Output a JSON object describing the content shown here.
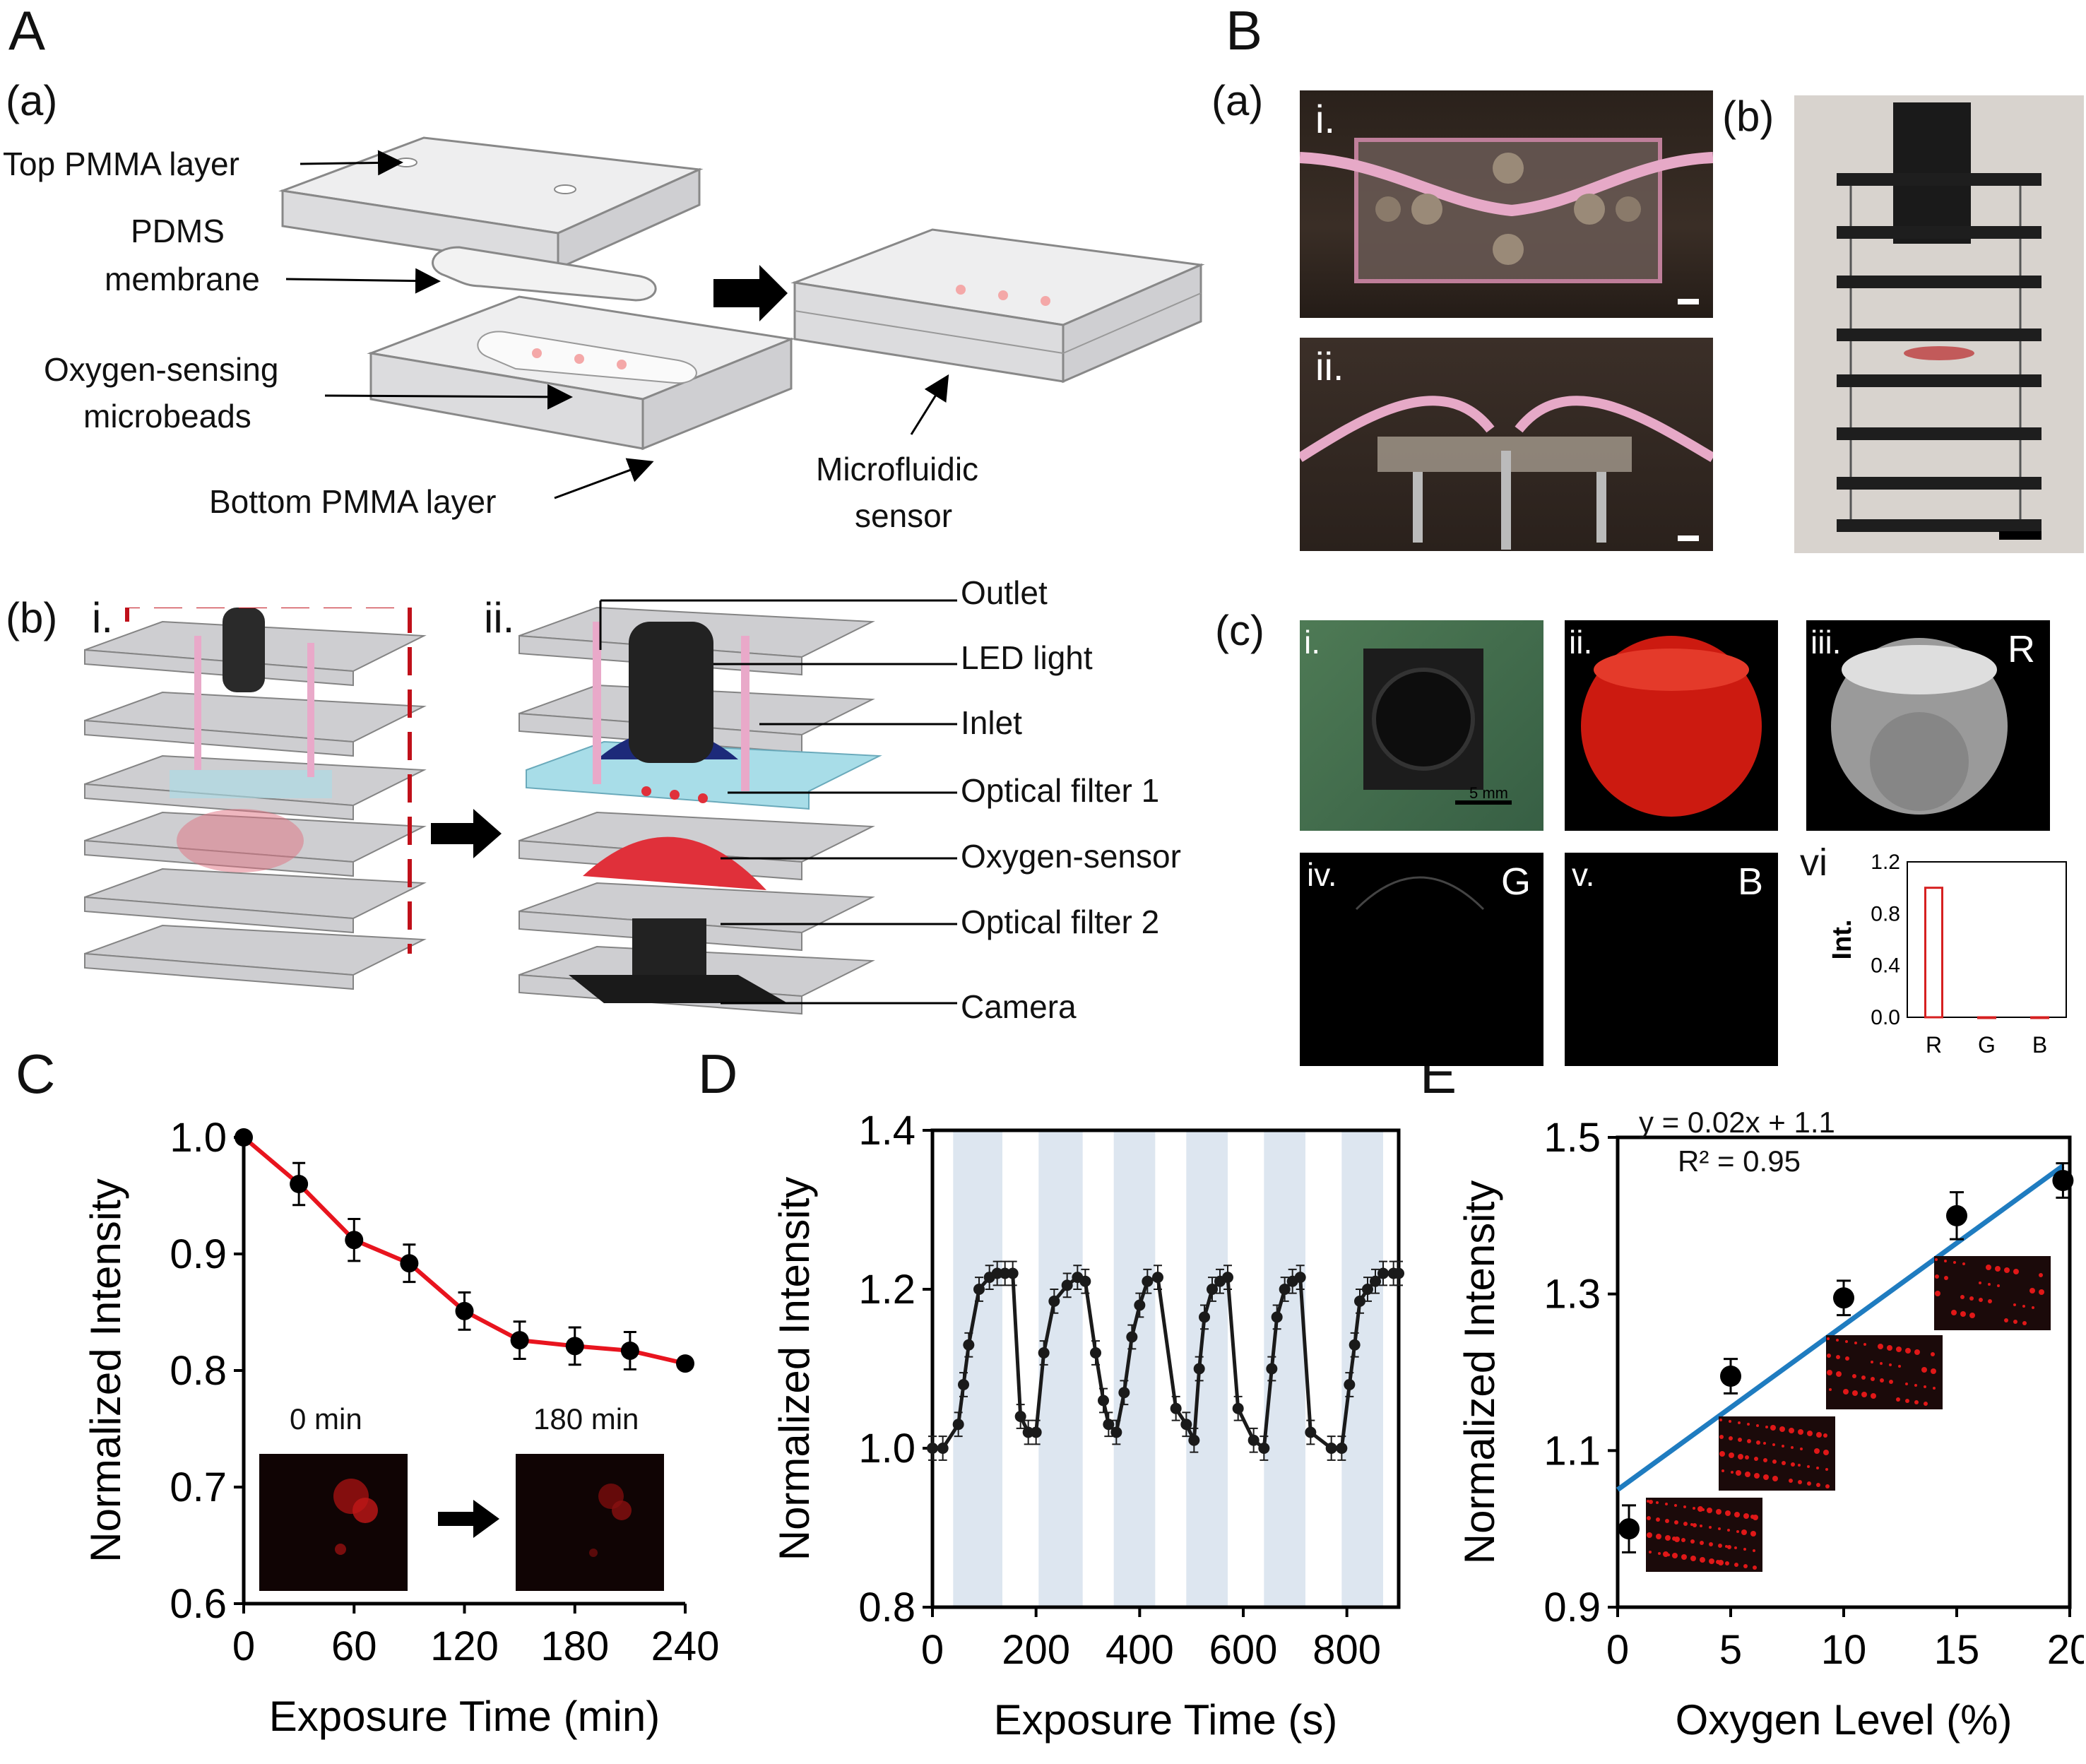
{
  "panels": {
    "A": {
      "letter": "A",
      "a": {
        "tag": "(a)",
        "labels": {
          "top_pmma": "Top PMMA layer",
          "pdms_1": "PDMS",
          "pdms_2": "membrane",
          "beads_1": "Oxygen-sensing",
          "beads_2": "microbeads",
          "bottom_pmma": "Bottom PMMA layer",
          "sensor_1": "Microfluidic",
          "sensor_2": "sensor"
        }
      },
      "b": {
        "tag": "(b)",
        "i": "i.",
        "ii": "ii.",
        "labels": [
          "Outlet",
          "LED light",
          "Inlet",
          "Optical filter 1",
          "Oxygen-sensor",
          "Optical filter 2",
          "Camera"
        ]
      }
    },
    "B": {
      "letter": "B",
      "a": {
        "tag": "(a)",
        "i": "i.",
        "ii": "ii."
      },
      "b": {
        "tag": "(b)"
      },
      "c": {
        "tag": "(c)",
        "tiles": [
          {
            "numeral": "i.",
            "channel": "",
            "scale": "5 mm"
          },
          {
            "numeral": "ii.",
            "channel": ""
          },
          {
            "numeral": "iii.",
            "channel": "R"
          },
          {
            "numeral": "iv.",
            "channel": "G"
          },
          {
            "numeral": "v.",
            "channel": "B"
          },
          {
            "numeral": "vi",
            "channel": ""
          }
        ]
      }
    },
    "C": {
      "letter": "C",
      "inset_left": "0 min",
      "inset_right": "180 min"
    },
    "D": {
      "letter": "D"
    },
    "E": {
      "letter": "E",
      "equation": "y = 0.02x + 1.1",
      "r2": "R² = 0.95"
    }
  },
  "chart_data": [
    {
      "id": "Bc-vi",
      "type": "bar",
      "categories": [
        "R",
        "G",
        "B"
      ],
      "values": [
        1.0,
        0.0,
        0.0
      ],
      "ylabel": "Int.",
      "ylim": [
        0,
        1.2
      ],
      "yticks": [
        "0.0",
        "0.4",
        "0.8",
        "1.2"
      ],
      "color": "#d62020"
    },
    {
      "id": "C",
      "type": "scatter",
      "xlabel": "Exposure Time (min)",
      "ylabel": "Normalized Intensity",
      "xlim": [
        0,
        240
      ],
      "ylim": [
        0.6,
        1.0
      ],
      "xticks": [
        "0",
        "60",
        "120",
        "180",
        "240"
      ],
      "yticks": [
        "0.6",
        "0.7",
        "0.8",
        "0.9",
        "1.0"
      ],
      "x": [
        0,
        30,
        60,
        90,
        120,
        150,
        180,
        210,
        240
      ],
      "y": [
        1.0,
        0.96,
        0.912,
        0.892,
        0.851,
        0.826,
        0.821,
        0.817,
        0.806
      ],
      "err": [
        0,
        0.018,
        0.018,
        0.016,
        0.016,
        0.016,
        0.016,
        0.016,
        0
      ],
      "fit_color": "#e8141e"
    },
    {
      "id": "D",
      "type": "line",
      "xlabel": "Exposure Time (s)",
      "ylabel": "Normalized Intensity",
      "xlim": [
        0,
        900
      ],
      "ylim": [
        0.8,
        1.4
      ],
      "xticks": [
        "0",
        "200",
        "400",
        "600",
        "800"
      ],
      "yticks": [
        "0.8",
        "1.0",
        "1.2",
        "1.4"
      ],
      "bands": [
        [
          40,
          135
        ],
        [
          205,
          290
        ],
        [
          350,
          430
        ],
        [
          490,
          570
        ],
        [
          640,
          720
        ],
        [
          790,
          870
        ]
      ],
      "band_color": "#dde6f0",
      "x": [
        0,
        20,
        50,
        60,
        70,
        90,
        110,
        125,
        140,
        155,
        170,
        185,
        200,
        215,
        235,
        260,
        280,
        295,
        315,
        330,
        340,
        355,
        370,
        385,
        400,
        415,
        435,
        470,
        490,
        505,
        515,
        525,
        540,
        555,
        570,
        590,
        620,
        640,
        655,
        665,
        680,
        695,
        710,
        730,
        770,
        790,
        805,
        815,
        825,
        840,
        855,
        870,
        890,
        900
      ],
      "y": [
        1.0,
        1.0,
        1.03,
        1.08,
        1.13,
        1.2,
        1.215,
        1.22,
        1.22,
        1.22,
        1.04,
        1.02,
        1.02,
        1.12,
        1.185,
        1.205,
        1.215,
        1.21,
        1.12,
        1.06,
        1.03,
        1.02,
        1.07,
        1.14,
        1.18,
        1.21,
        1.215,
        1.05,
        1.03,
        1.01,
        1.1,
        1.165,
        1.2,
        1.21,
        1.215,
        1.05,
        1.01,
        1.0,
        1.1,
        1.165,
        1.2,
        1.21,
        1.215,
        1.02,
        1.0,
        1.0,
        1.08,
        1.13,
        1.185,
        1.2,
        1.21,
        1.22,
        1.22,
        1.22
      ],
      "err": 0.015
    },
    {
      "id": "E",
      "type": "scatter",
      "xlabel": "Oxygen Level (%)",
      "ylabel": "Normalized Intensity",
      "xlim": [
        0,
        20
      ],
      "ylim": [
        0.9,
        1.5
      ],
      "xticks": [
        "0",
        "5",
        "10",
        "15",
        "20"
      ],
      "yticks": [
        "0.9",
        "1.1",
        "1.3",
        "1.5"
      ],
      "x": [
        0.5,
        5,
        10,
        15,
        19.7
      ],
      "y": [
        1.0,
        1.195,
        1.295,
        1.4,
        1.445
      ],
      "err": [
        0.03,
        0.022,
        0.022,
        0.03,
        0.022
      ],
      "fit": {
        "slope": 0.021,
        "intercept": 1.05,
        "x0": 0,
        "x1": 19.7
      },
      "fit_color": "#1f7cc0"
    }
  ]
}
